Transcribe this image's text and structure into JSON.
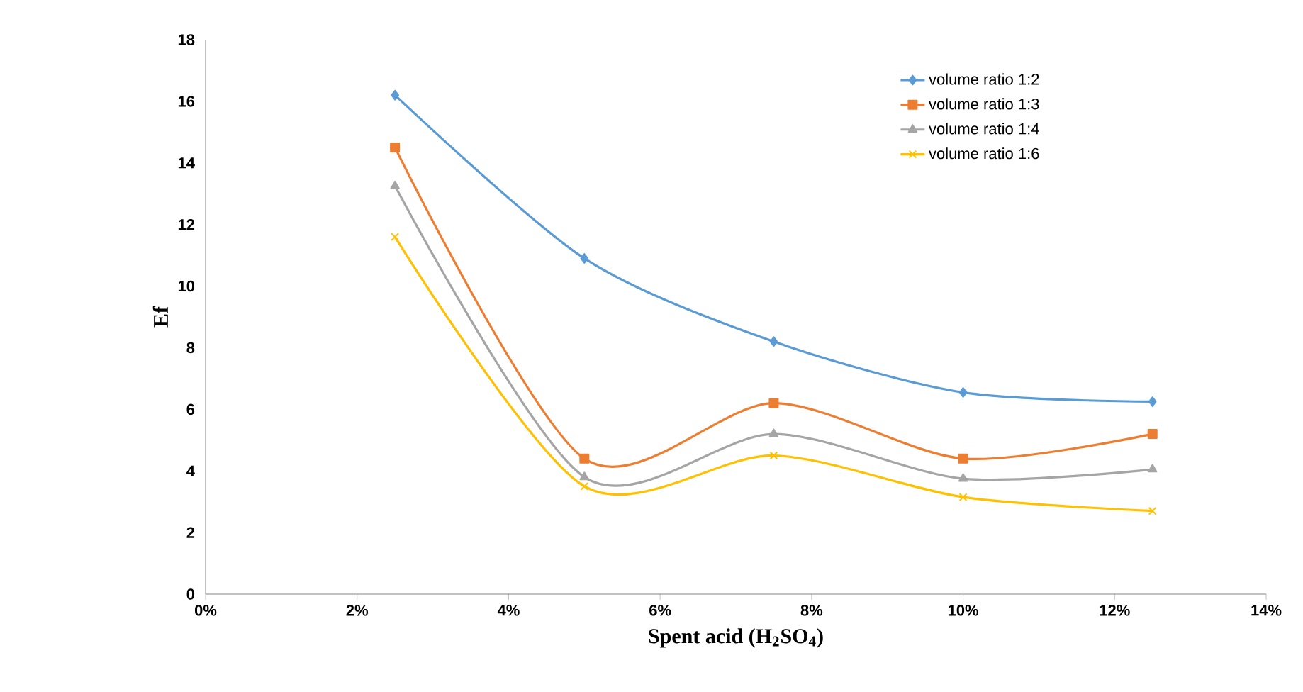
{
  "chart_data": {
    "type": "line",
    "xlabel": "Spent acid (H$_{2}$SO$_{4}$)",
    "ylabel": "Ef",
    "x": [
      2.5,
      5,
      7.5,
      10,
      12.5
    ],
    "series": [
      {
        "name": "volume ratio 1:2",
        "color": "#5b9bd5",
        "marker": "diamond",
        "values": [
          16.2,
          10.9,
          8.2,
          6.55,
          6.25
        ]
      },
      {
        "name": "volume ratio 1:3",
        "color": "#ed7d31",
        "marker": "square",
        "values": [
          14.5,
          4.4,
          6.2,
          4.4,
          5.2
        ]
      },
      {
        "name": "volume ratio 1:4",
        "color": "#a5a5a5",
        "marker": "triangle",
        "values": [
          13.25,
          3.8,
          5.2,
          3.75,
          4.05
        ]
      },
      {
        "name": "volume ratio 1:6",
        "color": "#ffc000",
        "marker": "cross",
        "values": [
          11.6,
          3.5,
          4.5,
          3.15,
          2.7
        ]
      }
    ],
    "xlim": [
      0,
      14
    ],
    "xticks": [
      {
        "value": 0,
        "label": "0%"
      },
      {
        "value": 2,
        "label": "2%"
      },
      {
        "value": 4,
        "label": "4%"
      },
      {
        "value": 6,
        "label": "6%"
      },
      {
        "value": 8,
        "label": "8%"
      },
      {
        "value": 10,
        "label": "10%"
      },
      {
        "value": 12,
        "label": "12%"
      },
      {
        "value": 14,
        "label": "14%"
      }
    ],
    "ylim": [
      0,
      18
    ],
    "yticks": [
      0,
      2,
      4,
      6,
      8,
      10,
      12,
      14,
      16,
      18
    ],
    "grid": false,
    "legend": "top right",
    "line_style": "solid"
  }
}
